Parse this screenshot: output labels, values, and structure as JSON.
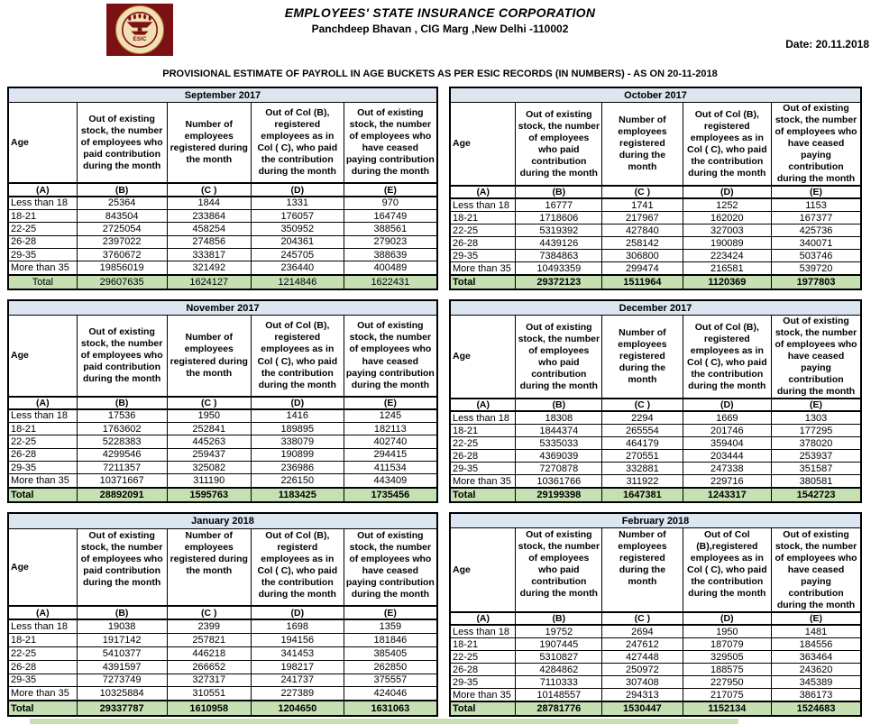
{
  "page": {
    "org_name": "EMPLOYEES' STATE INSURANCE CORPORATION",
    "address": "Panchdeep Bhavan , CIG Marg ,New Delhi -110002",
    "date": "Date: 20.11.2018",
    "subtitle": "PROVISIONAL ESTIMATE OF PAYROLL IN AGE BUCKETS AS PER ESIC RECORDS (IN NUMBERS) - AS ON 20-11-2018",
    "logo_text": "ESIC"
  },
  "colors": {
    "month_header_bg": "#dce6f1",
    "total_row_bg": "#c6e0b4",
    "logo_maroon": "#7b1113",
    "logo_cream": "#f2dfb3",
    "border": "#000000"
  },
  "col_letters": [
    "(A)",
    "(B)",
    "(C )",
    "(D)",
    "(E)"
  ],
  "tables": [
    {
      "month": "September 2017",
      "headers": [
        "Age",
        "Out of existing stock, the number of employees who paid contribution during the month",
        "Number of employees registered during the month",
        "Out of Col (B), registered employees as in Col ( C), who paid the contribution during the month",
        "Out of existing stock, the number of  employees who have ceased paying contribution during the month"
      ],
      "rows": [
        [
          "Less than 18",
          "25364",
          "1844",
          "1331",
          "970"
        ],
        [
          "18-21",
          "843504",
          "233864",
          "176057",
          "164749"
        ],
        [
          "22-25",
          "2725054",
          "458254",
          "350952",
          "388561"
        ],
        [
          "26-28",
          "2397022",
          "274856",
          "204361",
          "279023"
        ],
        [
          "29-35",
          "3760672",
          "333817",
          "245705",
          "388639"
        ],
        [
          "More than 35",
          "19856019",
          "321492",
          "236440",
          "400489"
        ]
      ],
      "total": [
        "Total",
        "29607635",
        "1624127",
        "1214846",
        "1622431"
      ],
      "total_style": "center-regular"
    },
    {
      "month": "October 2017",
      "headers": [
        "Age",
        "Out of existing stock, the number of employees who paid contribution during the month",
        "Number of employees registered during the month",
        "Out of Col (B), registered employees as in Col ( C), who paid the contribution during the month",
        "Out of existing stock, the number of employees  who have ceased paying contribution during the month"
      ],
      "rows": [
        [
          "Less than 18",
          "16777",
          "1741",
          "1252",
          "1153"
        ],
        [
          "18-21",
          "1718606",
          "217967",
          "162020",
          "167377"
        ],
        [
          "22-25",
          "5319392",
          "427840",
          "327003",
          "425736"
        ],
        [
          "26-28",
          "4439126",
          "258142",
          "190089",
          "340071"
        ],
        [
          "29-35",
          "7384863",
          "306800",
          "223424",
          "503746"
        ],
        [
          "More than 35",
          "10493359",
          "299474",
          "216581",
          "539720"
        ]
      ],
      "total": [
        "Total",
        "29372123",
        "1511964",
        "1120369",
        "1977803"
      ],
      "total_style": "bold-left"
    },
    {
      "month": "November 2017",
      "headers": [
        "Age",
        "Out of existing stock, the number of employees who paid contribution during the month",
        "Number of employees registered during the month",
        "Out of Col (B), registered employees as in Col ( C), who paid the contribution during the month",
        "Out of existing stock, the number of  employees who have ceased paying contribution during the month"
      ],
      "rows": [
        [
          "Less than 18",
          "17536",
          "1950",
          "1416",
          "1245"
        ],
        [
          "18-21",
          "1763602",
          "252841",
          "189895",
          "182113"
        ],
        [
          "22-25",
          "5228383",
          "445263",
          "338079",
          "402740"
        ],
        [
          "26-28",
          "4299546",
          "259437",
          "190899",
          "294415"
        ],
        [
          "29-35",
          "7211357",
          "325082",
          "236986",
          "411534"
        ],
        [
          "More than 35",
          "10371667",
          "311190",
          "226150",
          "443409"
        ]
      ],
      "total": [
        "Total",
        "28892091",
        "1595763",
        "1183425",
        "1735456"
      ],
      "total_style": "bold-left"
    },
    {
      "month": "December 2017",
      "headers": [
        "Age",
        "Out of existing stock, the number of employees who paid contribution during the month",
        "Number of employees registered during the month",
        "Out of Col (B), registered employees as in Col ( C), who paid the contribution during the month",
        "Out of existing stock, the number of employees  who have ceased paying contribution during the month"
      ],
      "rows": [
        [
          "Less than 18",
          "18308",
          "2294",
          "1669",
          "1303"
        ],
        [
          "18-21",
          "1844374",
          "265554",
          "201746",
          "177295"
        ],
        [
          "22-25",
          "5335033",
          "464179",
          "359404",
          "378020"
        ],
        [
          "26-28",
          "4369039",
          "270551",
          "203444",
          "253937"
        ],
        [
          "29-35",
          "7270878",
          "332881",
          "247338",
          "351587"
        ],
        [
          "More than 35",
          "10361766",
          "311922",
          "229716",
          "380581"
        ]
      ],
      "total": [
        "Total",
        "29199398",
        "1647381",
        "1243317",
        "1542723"
      ],
      "total_style": "bold-left"
    },
    {
      "month": "January 2018",
      "headers": [
        "Age",
        "Out of existing stock, the number of employees who paid contribution during the month",
        "Number of employees registered during the month",
        "Out of Col (B), registerd employees as in Col ( C), who paid the contribution during the month",
        "Out of existing stock, the number of  employees who have ceased paying contribution during the month"
      ],
      "rows": [
        [
          "Less than 18",
          "19038",
          "2399",
          "1698",
          "1359"
        ],
        [
          "18-21",
          "1917142",
          "257821",
          "194156",
          "181846"
        ],
        [
          "22-25",
          "5410377",
          "446218",
          "341453",
          "385405"
        ],
        [
          "26-28",
          "4391597",
          "266652",
          "198217",
          "262850"
        ],
        [
          "29-35",
          "7273749",
          "327317",
          "241737",
          "375557"
        ],
        [
          "More than 35",
          "10325884",
          "310551",
          "227389",
          "424046"
        ]
      ],
      "total": [
        "Total",
        "29337787",
        "1610958",
        "1204650",
        "1631063"
      ],
      "total_style": "bold-left"
    },
    {
      "month": "February 2018",
      "headers": [
        "Age",
        "Out of existing stock, the number of employees who paid contribution during the month",
        "Number of employees registered during the month",
        "Out of Col (B),registered employees as in Col ( C), who paid the contribution during the month",
        "Out of existing stock, the number of employees  who have ceased paying contribution during the month"
      ],
      "rows": [
        [
          "Less than 18",
          "19752",
          "2694",
          "1950",
          "1481"
        ],
        [
          "18-21",
          "1907445",
          "247612",
          "187079",
          "184556"
        ],
        [
          "22-25",
          "5310827",
          "427448",
          "329505",
          "363464"
        ],
        [
          "26-28",
          "4284862",
          "250972",
          "188575",
          "243620"
        ],
        [
          "29-35",
          "7110333",
          "307408",
          "227950",
          "345389"
        ],
        [
          "More than 35",
          "10148557",
          "294313",
          "217075",
          "386173"
        ]
      ],
      "total": [
        "Total",
        "28781776",
        "1530447",
        "1152134",
        "1524683"
      ],
      "total_style": "bold-left"
    }
  ]
}
